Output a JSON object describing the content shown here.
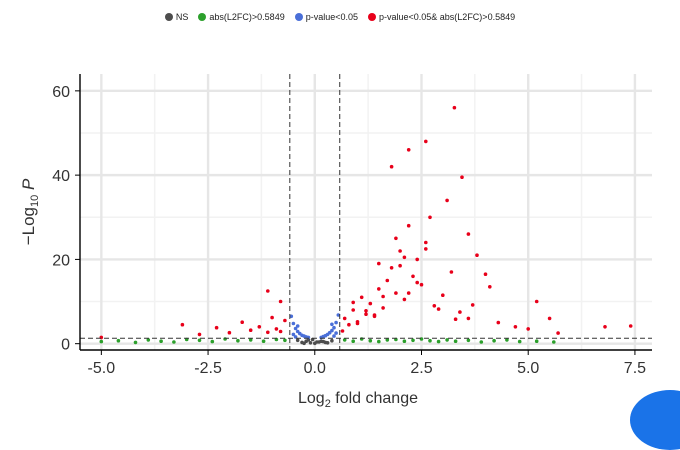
{
  "legend": {
    "items": [
      {
        "label": "NS",
        "color": "#4d4d4d"
      },
      {
        "label": "abs(L2FC)>0.5849",
        "color": "#2ca02c"
      },
      {
        "label": "p-value<0.05",
        "color": "#4a6fd8"
      },
      {
        "label": "p-value<0.05& abs(L2FC)>0.5849",
        "color": "#e8001a"
      }
    ]
  },
  "chart_data": {
    "type": "scatter",
    "xlabel": "Log2 fold change",
    "ylabel": "−Log10 P",
    "xlim": [
      -5.5,
      7.9
    ],
    "ylim": [
      -1.5,
      64
    ],
    "xticks": [
      -5.0,
      -2.5,
      0.0,
      2.5,
      5.0,
      7.5
    ],
    "xtick_labels": [
      "-5.0",
      "-2.5",
      "0.0",
      "2.5",
      "5.0",
      "7.5"
    ],
    "yticks": [
      0,
      20,
      40,
      60
    ],
    "ytick_labels": [
      "0",
      "20",
      "40",
      "60"
    ],
    "thresholds": {
      "x": [
        -0.5849,
        0.5849
      ],
      "y": 1.3
    },
    "grid": true,
    "legend_position": "top",
    "series": [
      {
        "name": "NS",
        "color": "#4d4d4d",
        "x": [
          -0.3,
          -0.2,
          -0.1,
          0.0,
          0.1,
          0.2,
          0.3,
          -0.4,
          0.4,
          -0.25,
          0.25,
          -0.15,
          0.15,
          0.05,
          -0.05
        ],
        "y": [
          0.3,
          0.6,
          0.2,
          0.1,
          0.4,
          0.5,
          0.2,
          0.8,
          0.7,
          0.1,
          0.3,
          0.9,
          0.6,
          0.4,
          1.0
        ]
      },
      {
        "name": "abs(L2FC)>0.5849",
        "color": "#2ca02c",
        "x": [
          -5.0,
          -4.6,
          -4.2,
          -3.9,
          -3.6,
          -3.3,
          -3.0,
          -2.7,
          -2.4,
          -2.1,
          -1.8,
          -1.5,
          -1.2,
          -0.9,
          -0.7,
          0.7,
          0.9,
          1.1,
          1.3,
          1.5,
          1.7,
          1.9,
          2.1,
          2.3,
          2.5,
          2.7,
          2.9,
          3.1,
          3.3,
          3.6,
          3.9,
          4.2,
          4.5,
          4.8,
          5.2,
          5.6
        ],
        "y": [
          0.5,
          0.7,
          0.3,
          0.9,
          0.6,
          0.4,
          1.0,
          0.8,
          0.5,
          1.1,
          0.7,
          0.9,
          0.6,
          1.0,
          0.8,
          0.9,
          0.6,
          1.1,
          0.7,
          0.5,
          0.9,
          1.0,
          0.6,
          0.8,
          1.1,
          0.7,
          0.5,
          0.9,
          0.6,
          0.8,
          0.4,
          0.7,
          0.9,
          0.5,
          0.6,
          0.4
        ]
      },
      {
        "name": "p-value<0.05",
        "color": "#4a6fd8",
        "x": [
          -0.55,
          -0.5,
          -0.45,
          -0.4,
          -0.35,
          -0.3,
          -0.25,
          -0.2,
          -0.15,
          0.15,
          0.2,
          0.25,
          0.3,
          0.35,
          0.4,
          0.45,
          0.5,
          0.55,
          -0.5,
          0.5,
          -0.45,
          0.45,
          -0.4,
          0.4
        ],
        "y": [
          6.5,
          4.8,
          3.6,
          2.9,
          2.4,
          2.0,
          1.8,
          1.6,
          1.5,
          1.5,
          1.7,
          1.9,
          2.2,
          2.6,
          3.1,
          3.8,
          5.0,
          6.8,
          2.2,
          2.5,
          1.6,
          1.8,
          4.2,
          4.6
        ]
      },
      {
        "name": "p-value<0.05& abs(L2FC)>0.5849",
        "color": "#e8001a",
        "x": [
          -5.0,
          -3.1,
          -2.7,
          -2.3,
          -2.0,
          -1.7,
          -1.5,
          -1.3,
          -1.1,
          -1.0,
          -0.9,
          -0.8,
          -0.7,
          -1.1,
          -0.8,
          0.65,
          0.7,
          0.8,
          0.9,
          1.0,
          1.1,
          1.2,
          1.3,
          1.4,
          1.5,
          1.6,
          1.7,
          1.8,
          1.9,
          2.0,
          2.1,
          2.2,
          2.3,
          2.4,
          2.5,
          2.6,
          2.8,
          3.0,
          3.2,
          3.4,
          3.6,
          3.8,
          4.1,
          4.3,
          4.7,
          5.0,
          5.2,
          5.5,
          5.7,
          6.8,
          7.4,
          1.8,
          2.2,
          2.6,
          3.1,
          3.27,
          3.45,
          2.7,
          1.5,
          3.6,
          4.0,
          2.2,
          1.9,
          2.4,
          1.2,
          0.9,
          2.0,
          2.9,
          3.3,
          1.6,
          2.1,
          1.0,
          1.4,
          2.6,
          3.7
        ],
        "y": [
          1.5,
          4.5,
          2.2,
          3.8,
          2.6,
          5.1,
          3.2,
          4.0,
          2.7,
          6.2,
          3.5,
          2.9,
          5.5,
          12.5,
          10.0,
          3.0,
          6.0,
          4.5,
          8.0,
          5.2,
          11.0,
          7.0,
          9.5,
          6.5,
          13.0,
          8.5,
          15.0,
          18.0,
          12.0,
          22.0,
          10.5,
          28.0,
          16.0,
          20.0,
          14.0,
          24.0,
          9.0,
          11.5,
          17.0,
          7.5,
          6.0,
          21.0,
          13.5,
          5.0,
          4.0,
          3.5,
          10.0,
          6.0,
          2.5,
          4.0,
          4.2,
          42.0,
          46.0,
          48.0,
          34.0,
          56.0,
          39.5,
          30.0,
          19.0,
          26.0,
          16.5,
          12.0,
          25.0,
          14.5,
          7.8,
          9.8,
          18.5,
          8.2,
          5.8,
          11.2,
          20.5,
          4.8,
          6.8,
          22.5,
          9.2
        ]
      }
    ]
  }
}
